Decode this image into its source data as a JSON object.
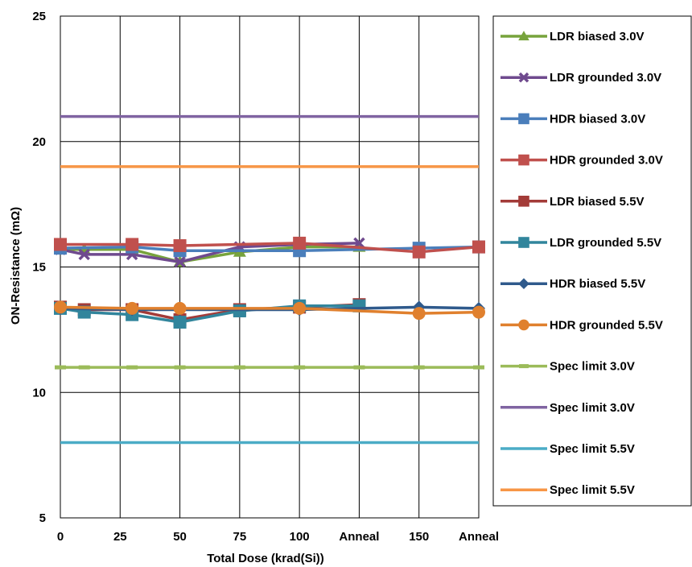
{
  "chart_data": {
    "type": "line",
    "title": "",
    "xlabel": "Total Dose (krad(Si))",
    "ylabel": "ON-Resistance (mΩ)",
    "ylim": [
      5,
      25
    ],
    "yticks": [
      5,
      10,
      15,
      20,
      25
    ],
    "x_positions": [
      0,
      10,
      30,
      50,
      75,
      100,
      125,
      150,
      175
    ],
    "x_tick_labels": [
      "0",
      "25",
      "50",
      "75",
      "100",
      "Anneal",
      "150",
      "Anneal"
    ],
    "x_tick_positions": [
      0,
      25,
      50,
      75,
      100,
      125,
      150,
      175
    ],
    "grid": true,
    "legend_position": "right",
    "series": [
      {
        "name": "LDR biased 3.0V",
        "color": "#77A33C",
        "marker": "triangle",
        "x": [
          0,
          10,
          30,
          50,
          75,
          100,
          125
        ],
        "values": [
          15.7,
          15.7,
          15.7,
          15.2,
          15.6,
          15.8,
          15.8
        ]
      },
      {
        "name": "LDR grounded 3.0V",
        "color": "#6F4A8E",
        "marker": "x",
        "x": [
          0,
          10,
          30,
          50,
          75,
          100,
          125
        ],
        "values": [
          15.7,
          15.5,
          15.5,
          15.2,
          15.8,
          15.9,
          15.95
        ]
      },
      {
        "name": "HDR biased 3.0V",
        "color": "#4A7EBB",
        "marker": "square",
        "x": [
          0,
          30,
          50,
          100,
          150,
          175
        ],
        "values": [
          15.75,
          15.8,
          15.65,
          15.65,
          15.75,
          15.8
        ]
      },
      {
        "name": "HDR grounded 3.0V",
        "color": "#C0504D",
        "marker": "square",
        "x": [
          0,
          30,
          50,
          100,
          150,
          175
        ],
        "values": [
          15.9,
          15.9,
          15.85,
          15.95,
          15.6,
          15.8
        ]
      },
      {
        "name": "LDR biased 5.5V",
        "color": "#A33B38",
        "marker": "square",
        "x": [
          0,
          10,
          30,
          50,
          75,
          100,
          125
        ],
        "values": [
          13.4,
          13.3,
          13.3,
          12.9,
          13.3,
          13.4,
          13.5
        ]
      },
      {
        "name": "LDR grounded 5.5V",
        "color": "#31859C",
        "marker": "square",
        "x": [
          0,
          10,
          30,
          50,
          75,
          100,
          125
        ],
        "values": [
          13.35,
          13.2,
          13.1,
          12.8,
          13.25,
          13.45,
          13.45
        ]
      },
      {
        "name": "HDR biased 5.5V",
        "color": "#2F5A8C",
        "marker": "diamond",
        "x": [
          0,
          30,
          50,
          100,
          150,
          175
        ],
        "values": [
          13.35,
          13.3,
          13.3,
          13.3,
          13.4,
          13.35
        ]
      },
      {
        "name": "HDR grounded 5.5V",
        "color": "#E0802E",
        "marker": "circle",
        "x": [
          0,
          30,
          50,
          100,
          150,
          175
        ],
        "values": [
          13.4,
          13.35,
          13.35,
          13.35,
          13.15,
          13.2
        ]
      },
      {
        "name": "Spec limit 3.0V",
        "color": "#9BBB59",
        "marker": "dash",
        "x": [
          0,
          10,
          30,
          50,
          75,
          100,
          125,
          150,
          175
        ],
        "values": [
          11,
          11,
          11,
          11,
          11,
          11,
          11,
          11,
          11
        ]
      },
      {
        "name": "Spec limit 3.0V",
        "color": "#8064A2",
        "marker": "none",
        "x": [
          0,
          175
        ],
        "values": [
          21,
          21
        ]
      },
      {
        "name": "Spec limit 5.5V",
        "color": "#4BACC6",
        "marker": "none",
        "x": [
          0,
          175
        ],
        "values": [
          8,
          8
        ]
      },
      {
        "name": "Spec limit 5.5V",
        "color": "#F79646",
        "marker": "none",
        "x": [
          0,
          175
        ],
        "values": [
          19,
          19
        ]
      }
    ]
  }
}
